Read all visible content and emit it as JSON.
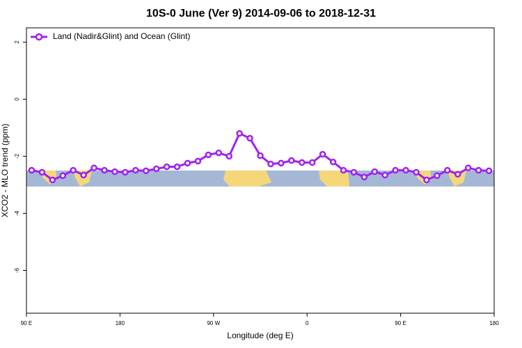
{
  "chart_data": {
    "type": "line",
    "title": "10S-0 June (Ver 9)   2014-09-06 to 2018-12-31",
    "x_label": "Longitude (deg E)",
    "y_label": "XCO2 - MLO trend (ppm)",
    "x": [
      95,
      105,
      115,
      125,
      135,
      145,
      155,
      165,
      175,
      185,
      195,
      205,
      215,
      225,
      235,
      245,
      255,
      265,
      275,
      285,
      295,
      305,
      315,
      325,
      335,
      345,
      355,
      365,
      375,
      385,
      395,
      405,
      415,
      425,
      435,
      445,
      455,
      465,
      475,
      485,
      495,
      505,
      515,
      525,
      535
    ],
    "series": [
      {
        "name": "Land (Nadir&Glint) and Ocean (Glint)",
        "color": "#a020f0",
        "values": [
          -2.49,
          -2.56,
          -2.83,
          -2.68,
          -2.49,
          -2.66,
          -2.41,
          -2.49,
          -2.54,
          -2.56,
          -2.49,
          -2.51,
          -2.44,
          -2.37,
          -2.37,
          -2.24,
          -2.17,
          -1.95,
          -1.88,
          -2.0,
          -1.2,
          -1.37,
          -1.98,
          -2.27,
          -2.24,
          -2.15,
          -2.22,
          -2.22,
          -1.93,
          -2.2,
          -2.49,
          -2.56,
          -2.73,
          -2.54,
          -2.66,
          -2.49,
          -2.49,
          -2.56,
          -2.83,
          -2.68,
          -2.49,
          -2.63,
          -2.41,
          -2.49,
          -2.51
        ]
      }
    ],
    "xlim": [
      90,
      540
    ],
    "xticks": [
      {
        "value": 90,
        "label": "90 E"
      },
      {
        "value": 180,
        "label": "180"
      },
      {
        "value": 270,
        "label": "90 W"
      },
      {
        "value": 360,
        "label": "0"
      },
      {
        "value": 450,
        "label": "90 E"
      },
      {
        "value": 540,
        "label": "180"
      }
    ],
    "ylim": [
      -7.5,
      2.5
    ],
    "yticks": [
      -6,
      -4,
      -2,
      0,
      2
    ],
    "legend": "top-left"
  }
}
